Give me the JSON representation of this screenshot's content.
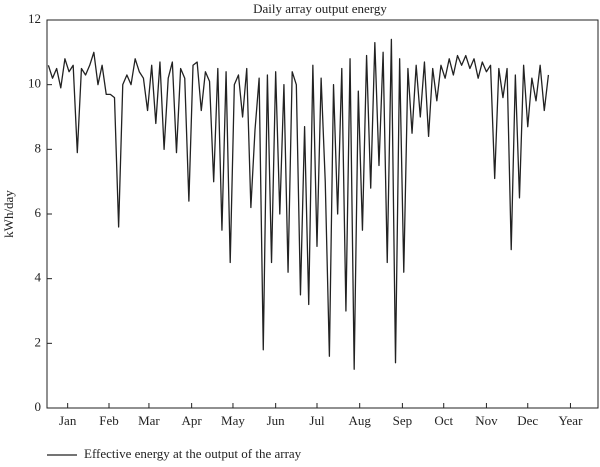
{
  "chart_data": {
    "type": "line",
    "title": "Daily array output energy",
    "y_label": "kWh/day",
    "xlim": [
      0,
      400
    ],
    "ylim": [
      0,
      12
    ],
    "xticks": [
      {
        "value": 15,
        "label": "Jan"
      },
      {
        "value": 45,
        "label": "Feb"
      },
      {
        "value": 74,
        "label": "Mar"
      },
      {
        "value": 105,
        "label": "Apr"
      },
      {
        "value": 135,
        "label": "May"
      },
      {
        "value": 166,
        "label": "Jun"
      },
      {
        "value": 196,
        "label": "Jul"
      },
      {
        "value": 227,
        "label": "Aug"
      },
      {
        "value": 258,
        "label": "Sep"
      },
      {
        "value": 288,
        "label": "Oct"
      },
      {
        "value": 319,
        "label": "Nov"
      },
      {
        "value": 349,
        "label": "Dec"
      },
      {
        "value": 380,
        "label": "Year"
      }
    ],
    "yticks": [
      0,
      2,
      4,
      6,
      8,
      10,
      12
    ],
    "grid": false,
    "x": [
      1,
      4,
      7,
      10,
      13,
      16,
      19,
      22,
      25,
      28,
      31,
      34,
      37,
      40,
      43,
      46,
      49,
      52,
      55,
      58,
      61,
      64,
      67,
      70,
      73,
      76,
      79,
      82,
      85,
      88,
      91,
      94,
      97,
      100,
      103,
      106,
      109,
      112,
      115,
      118,
      121,
      124,
      127,
      130,
      133,
      136,
      139,
      142,
      145,
      148,
      151,
      154,
      157,
      160,
      163,
      166,
      169,
      172,
      175,
      178,
      181,
      184,
      187,
      190,
      193,
      196,
      199,
      202,
      205,
      208,
      211,
      214,
      217,
      220,
      223,
      226,
      229,
      232,
      235,
      238,
      241,
      244,
      247,
      250,
      253,
      256,
      259,
      262,
      265,
      268,
      271,
      274,
      277,
      280,
      283,
      286,
      289,
      292,
      295,
      298,
      301,
      304,
      307,
      310,
      313,
      316,
      319,
      322,
      325,
      328,
      331,
      334,
      337,
      340,
      343,
      346,
      349,
      352,
      355,
      358,
      361,
      364
    ],
    "series": [
      {
        "name": "Effective energy at the output of the array",
        "color": "#222222",
        "values": [
          10.6,
          10.2,
          10.5,
          9.9,
          10.8,
          10.4,
          10.6,
          7.9,
          10.5,
          10.3,
          10.6,
          11.0,
          10.0,
          10.6,
          9.7,
          9.7,
          9.6,
          5.6,
          10.0,
          10.3,
          10.0,
          10.8,
          10.4,
          10.2,
          9.2,
          10.6,
          8.8,
          10.7,
          8.0,
          10.2,
          10.7,
          7.9,
          10.5,
          10.2,
          6.4,
          10.6,
          10.7,
          9.2,
          10.4,
          10.1,
          7.0,
          10.5,
          5.5,
          10.4,
          4.5,
          10.0,
          10.3,
          9.0,
          10.5,
          6.2,
          8.6,
          10.2,
          1.8,
          10.3,
          4.5,
          10.4,
          6.0,
          10.0,
          4.2,
          10.4,
          10.0,
          3.5,
          8.7,
          3.2,
          10.6,
          5.0,
          10.2,
          7.0,
          1.6,
          10.0,
          6.0,
          10.5,
          3.0,
          10.8,
          1.2,
          9.8,
          5.5,
          10.9,
          6.8,
          11.3,
          7.5,
          11.0,
          4.5,
          11.4,
          1.4,
          10.8,
          4.2,
          10.5,
          8.5,
          10.6,
          9.0,
          10.7,
          8.4,
          10.5,
          9.5,
          10.6,
          10.2,
          10.8,
          10.3,
          10.9,
          10.6,
          10.9,
          10.5,
          10.8,
          10.2,
          10.7,
          10.4,
          10.6,
          7.1,
          10.5,
          9.6,
          10.5,
          4.9,
          10.3,
          6.5,
          10.6,
          8.7,
          10.2,
          9.5,
          10.6,
          9.2,
          10.3
        ]
      }
    ]
  }
}
